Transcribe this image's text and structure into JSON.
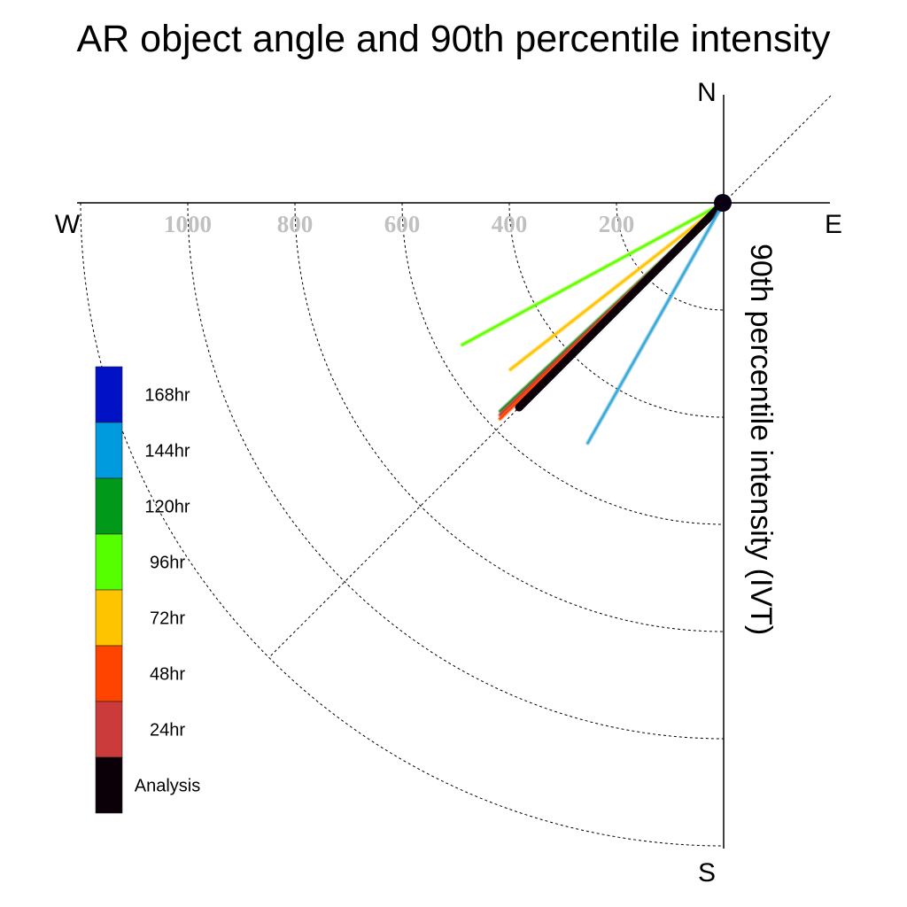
{
  "chart_data": {
    "type": "polar-vector",
    "title": "AR object angle and 90th percentile intensity",
    "radial_label": "90th percentile intensity (IVT)",
    "compass": {
      "north": "N",
      "east": "E",
      "south": "S",
      "west": "W"
    },
    "radial_ticks": [
      {
        "value": 200,
        "label": "200"
      },
      {
        "value": 400,
        "label": "400"
      },
      {
        "value": 600,
        "label": "600"
      },
      {
        "value": 800,
        "label": "800"
      },
      {
        "value": 1000,
        "label": "1000"
      }
    ],
    "radial_max": 1200,
    "series": [
      {
        "name": "96hr",
        "color": "#66ff00",
        "angle_deg": 241.5,
        "intensity": 555
      },
      {
        "name": "72hr",
        "color": "#ffc400",
        "angle_deg": 232,
        "intensity": 505
      },
      {
        "name": "120hr",
        "color": "#2a8c1e",
        "angle_deg": 227,
        "intensity": 570
      },
      {
        "name": "24hr",
        "color": "#cc3b3b",
        "angle_deg": 226.5,
        "intensity": 575
      },
      {
        "name": "48hr",
        "color": "#ff4400",
        "angle_deg": 226,
        "intensity": 580
      },
      {
        "name": "Analysis",
        "color": "#0c0008",
        "angle_deg": 225,
        "intensity": 540
      },
      {
        "name": "144hr",
        "color": "#3ba8d8",
        "angle_deg": 209.5,
        "intensity": 515
      }
    ],
    "legend": [
      {
        "label": "168hr",
        "color": "#0011c6"
      },
      {
        "label": "144hr",
        "color": "#009ade"
      },
      {
        "label": "120hr",
        "color": "#00991a"
      },
      {
        "label": "96hr",
        "color": "#55ff00"
      },
      {
        "label": "72hr",
        "color": "#ffc400"
      },
      {
        "label": "48hr",
        "color": "#ff4400"
      },
      {
        "label": "24hr",
        "color": "#cc3b3b"
      },
      {
        "label": "Analysis",
        "color": "#0c0008"
      }
    ]
  }
}
